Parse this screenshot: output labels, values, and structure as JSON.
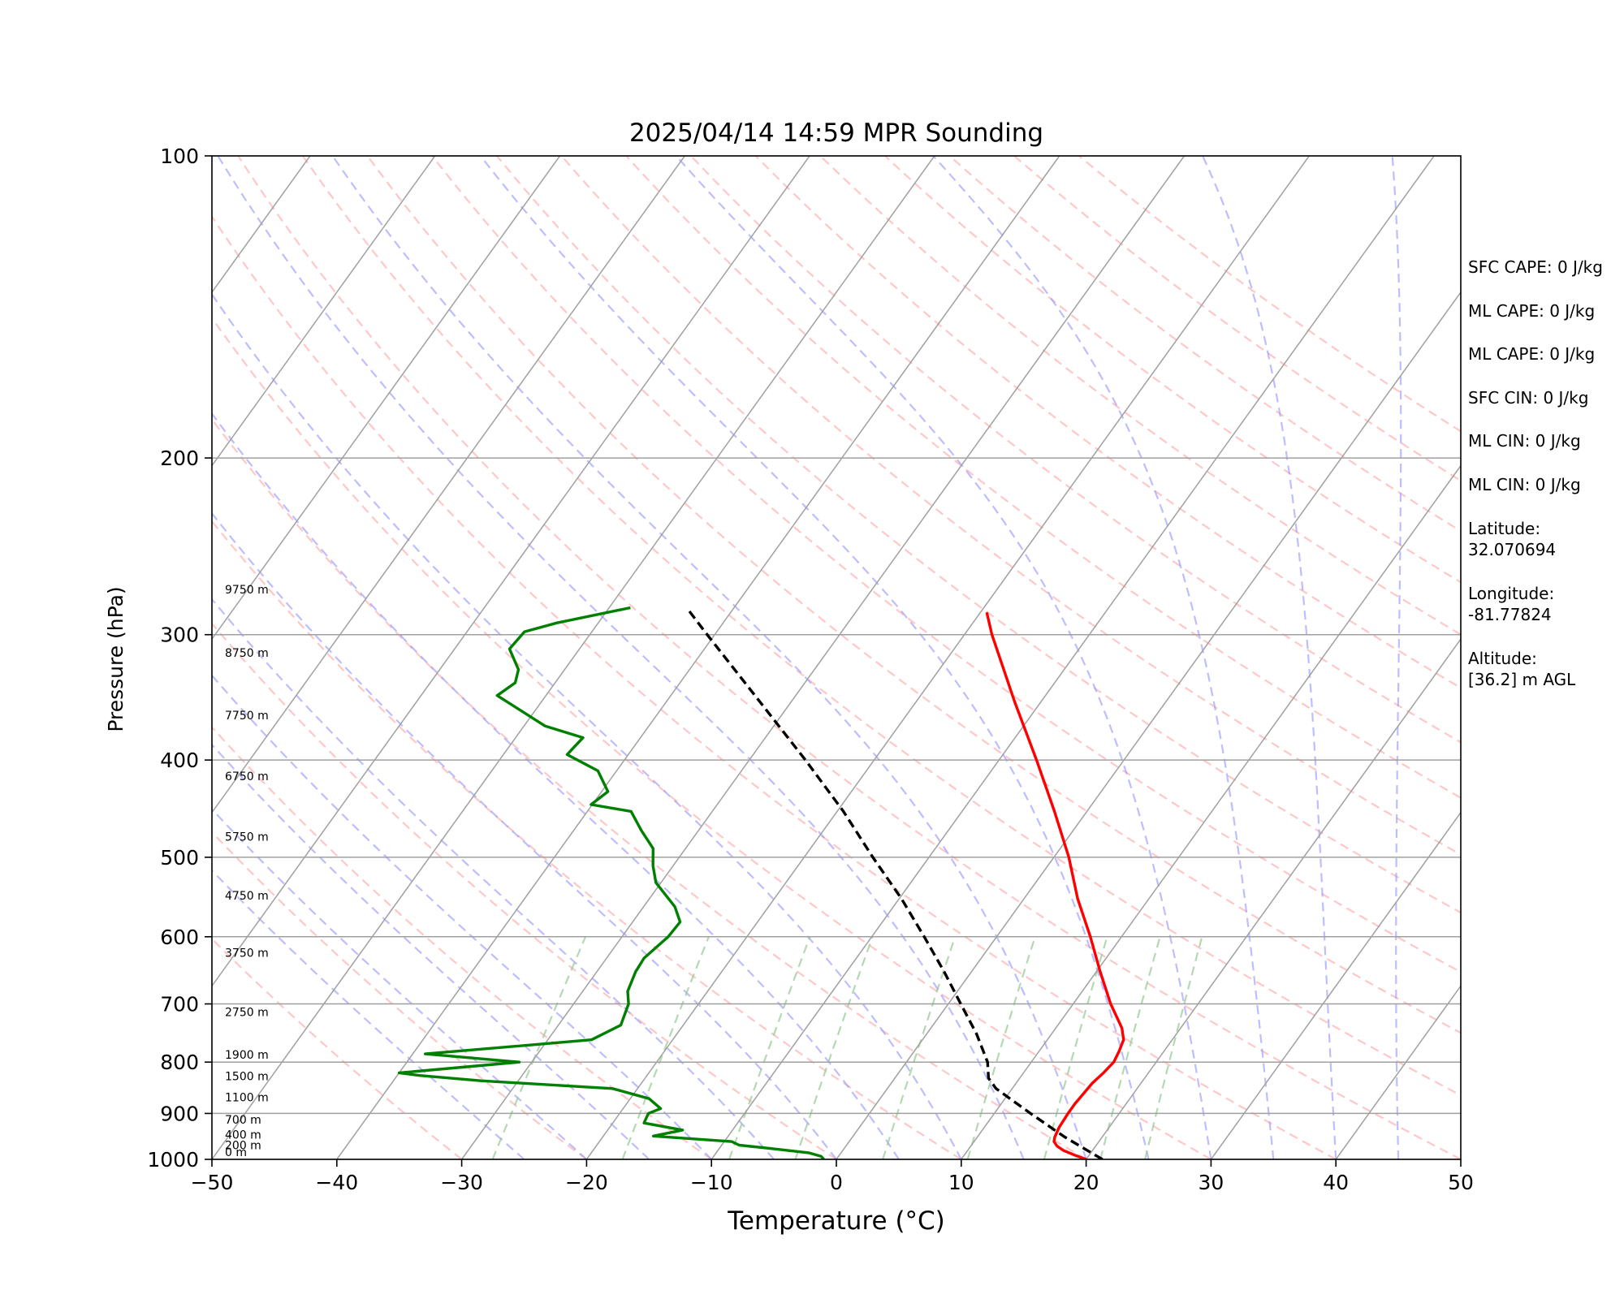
{
  "chart_data": {
    "type": "line",
    "subtype": "skew-t log-p",
    "title": "2025/04/14 14:59 MPR Sounding",
    "xlabel": "Temperature (°C)",
    "ylabel": "Pressure (hPa)",
    "xlim": [
      -50,
      50
    ],
    "ylim": [
      1000,
      100
    ],
    "y_scale": "log",
    "x_ticks": [
      "−50",
      "−40",
      "−30",
      "−20",
      "−10",
      "0",
      "10",
      "20",
      "30",
      "40",
      "50"
    ],
    "y_ticks": [
      {
        "p": 100,
        "label": "100"
      },
      {
        "p": 200,
        "label": "200"
      },
      {
        "p": 300,
        "label": "300"
      },
      {
        "p": 400,
        "label": "400"
      },
      {
        "p": 500,
        "label": "500"
      },
      {
        "p": 600,
        "label": "600"
      },
      {
        "p": 700,
        "label": "700"
      },
      {
        "p": 800,
        "label": "800"
      },
      {
        "p": 900,
        "label": "900"
      },
      {
        "p": 1000,
        "label": "1000"
      }
    ],
    "grid": "horizontal isobars, skewed isotherms, dry adiabats, moist adiabats, mixing ratio lines",
    "series": [
      {
        "key": "temperature",
        "color": "#ff0000",
        "points": [
          [
            1000,
            20.0
          ],
          [
            990,
            18.8
          ],
          [
            980,
            17.7
          ],
          [
            970,
            16.9
          ],
          [
            960,
            16.4
          ],
          [
            950,
            16.2
          ],
          [
            930,
            16.0
          ],
          [
            900,
            15.9
          ],
          [
            880,
            15.9
          ],
          [
            860,
            16.0
          ],
          [
            840,
            16.1
          ],
          [
            820,
            16.4
          ],
          [
            800,
            16.6
          ],
          [
            780,
            16.4
          ],
          [
            760,
            16.1
          ],
          [
            740,
            15.3
          ],
          [
            700,
            13.0
          ],
          [
            650,
            10.3
          ],
          [
            600,
            7.5
          ],
          [
            550,
            4.3
          ],
          [
            500,
            1.2
          ],
          [
            450,
            -2.6
          ],
          [
            400,
            -7.0
          ],
          [
            350,
            -12.1
          ],
          [
            300,
            -17.8
          ],
          [
            285,
            -19.5
          ]
        ]
      },
      {
        "key": "dewpoint",
        "color": "#008000",
        "points": [
          [
            1000,
            -1.0
          ],
          [
            993,
            -1.4
          ],
          [
            985,
            -2.6
          ],
          [
            975,
            -6.0
          ],
          [
            968,
            -8.6
          ],
          [
            960,
            -9.4
          ],
          [
            948,
            -16.0
          ],
          [
            935,
            -14.0
          ],
          [
            920,
            -17.5
          ],
          [
            900,
            -17.7
          ],
          [
            890,
            -17.0
          ],
          [
            870,
            -18.5
          ],
          [
            850,
            -22.0
          ],
          [
            835,
            -33.0
          ],
          [
            825,
            -38.2
          ],
          [
            820,
            -40.0
          ],
          [
            800,
            -31.0
          ],
          [
            785,
            -39.0
          ],
          [
            760,
            -26.5
          ],
          [
            735,
            -25.0
          ],
          [
            700,
            -25.6
          ],
          [
            680,
            -26.4
          ],
          [
            650,
            -26.9
          ],
          [
            630,
            -27.0
          ],
          [
            600,
            -26.3
          ],
          [
            580,
            -26.2
          ],
          [
            560,
            -27.5
          ],
          [
            530,
            -30.4
          ],
          [
            510,
            -31.6
          ],
          [
            490,
            -32.6
          ],
          [
            470,
            -34.6
          ],
          [
            450,
            -36.5
          ],
          [
            443,
            -40.1
          ],
          [
            430,
            -39.5
          ],
          [
            410,
            -41.5
          ],
          [
            395,
            -44.9
          ],
          [
            380,
            -44.6
          ],
          [
            370,
            -48.3
          ],
          [
            345,
            -53.9
          ],
          [
            335,
            -53.2
          ],
          [
            325,
            -53.7
          ],
          [
            310,
            -55.6
          ],
          [
            298,
            -55.4
          ],
          [
            292,
            -53.3
          ],
          [
            282,
            -48.3
          ]
        ]
      },
      {
        "key": "parcel",
        "color": "#000000",
        "style": "dashed",
        "points": [
          [
            1000,
            21.3
          ],
          [
            950,
            17.0
          ],
          [
            900,
            12.9
          ],
          [
            850,
            8.7
          ],
          [
            830,
            7.5
          ],
          [
            800,
            6.5
          ],
          [
            750,
            4.0
          ],
          [
            700,
            1.0
          ],
          [
            650,
            -2.2
          ],
          [
            600,
            -5.8
          ],
          [
            550,
            -9.8
          ],
          [
            500,
            -14.5
          ],
          [
            450,
            -19.5
          ],
          [
            400,
            -25.5
          ],
          [
            350,
            -32.5
          ],
          [
            300,
            -40.6
          ],
          [
            282,
            -43.8
          ]
        ]
      }
    ],
    "height_labels": [
      {
        "p": 1000,
        "label": "0 m"
      },
      {
        "p": 984,
        "label": "200 m"
      },
      {
        "p": 961,
        "label": "400 m"
      },
      {
        "p": 928,
        "label": "700 m"
      },
      {
        "p": 882,
        "label": "1100 m"
      },
      {
        "p": 840,
        "label": "1500 m"
      },
      {
        "p": 800,
        "label": "1900 m"
      },
      {
        "p": 725,
        "label": "2750 m"
      },
      {
        "p": 633,
        "label": "3750 m"
      },
      {
        "p": 555,
        "label": "4750 m"
      },
      {
        "p": 485,
        "label": "5750 m"
      },
      {
        "p": 422,
        "label": "6750 m"
      },
      {
        "p": 367,
        "label": "7750 m"
      },
      {
        "p": 318,
        "label": "8750 m"
      },
      {
        "p": 275,
        "label": "9750 m"
      }
    ],
    "annotations": [
      {
        "key": "sfc_cape",
        "text": "SFC CAPE: 0 J/kg"
      },
      {
        "key": "ml_cape",
        "text": "ML CAPE: 0 J/kg"
      },
      {
        "key": "ml_cape_2",
        "text": "ML CAPE: 0 J/kg"
      },
      {
        "key": "sfc_cin",
        "text": "SFC CIN: 0 J/kg"
      },
      {
        "key": "ml_cin",
        "text": "ML CIN: 0 J/kg"
      },
      {
        "key": "ml_cin_2",
        "text": "ML CIN: 0 J/kg"
      },
      {
        "key": "latitude",
        "text": "Latitude:",
        "value": "32.070694"
      },
      {
        "key": "longitude",
        "text": "Longitude:",
        "value": "-81.77824"
      },
      {
        "key": "altitude",
        "text": "Altitude:",
        "value": "[36.2] m AGL"
      }
    ],
    "colors": {
      "temperature": "#ff0000",
      "dewpoint": "#008000",
      "parcel": "#000000",
      "dry_adiabats": "#ff9999",
      "moist_adiabats": "#9999ff",
      "mixing_ratio": "#99cc99",
      "grid": "#a0a0a0"
    }
  }
}
